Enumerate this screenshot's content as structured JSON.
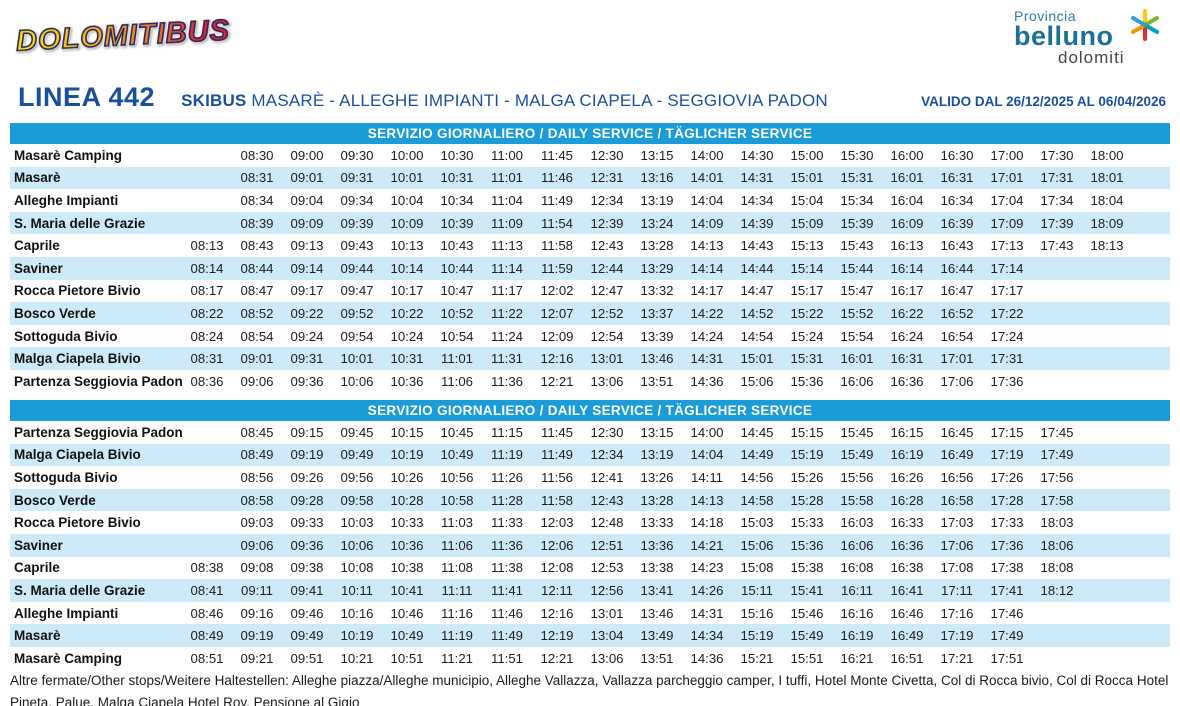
{
  "colors": {
    "title_blue": "#1a4f9e",
    "table_header_bg": "#1a9cd8",
    "row_stripe": "#cdeaf8",
    "provincia_teal": "#1d6f97"
  },
  "header": {
    "dolomitibus_logo_text": "DOLOMITIBUS",
    "provincia_logo": {
      "line1": "Provincia",
      "line2": "belluno",
      "line3": "dolomiti",
      "star_icon": "multicolor-star-icon"
    }
  },
  "title": {
    "line_number": "LINEA 442",
    "service_label": "SKIBUS",
    "route": " MASARÈ - ALLEGHE IMPIANTI - MALGA CIAPELA - SEGGIOVIA PADON",
    "validity": "VALIDO DAL 26/12/2025 AL 06/04/2026"
  },
  "tables": [
    {
      "header": "SERVIZIO GIORNALIERO / DAILY SERVICE / TÄGLICHER SERVICE",
      "rows": [
        {
          "stop": "Masarè Camping",
          "times": [
            "",
            "08:30",
            "09:00",
            "09:30",
            "10:00",
            "10:30",
            "11:00",
            "11:45",
            "12:30",
            "13:15",
            "14:00",
            "14:30",
            "15:00",
            "15:30",
            "16:00",
            "16:30",
            "17:00",
            "17:30",
            "18:00"
          ]
        },
        {
          "stop": "Masarè",
          "times": [
            "",
            "08:31",
            "09:01",
            "09:31",
            "10:01",
            "10:31",
            "11:01",
            "11:46",
            "12:31",
            "13:16",
            "14:01",
            "14:31",
            "15:01",
            "15:31",
            "16:01",
            "16:31",
            "17:01",
            "17:31",
            "18:01"
          ]
        },
        {
          "stop": "Alleghe Impianti",
          "times": [
            "",
            "08:34",
            "09:04",
            "09:34",
            "10:04",
            "10:34",
            "11:04",
            "11:49",
            "12:34",
            "13:19",
            "14:04",
            "14:34",
            "15:04",
            "15:34",
            "16:04",
            "16:34",
            "17:04",
            "17:34",
            "18:04"
          ]
        },
        {
          "stop": "S. Maria delle Grazie",
          "times": [
            "",
            "08:39",
            "09:09",
            "09:39",
            "10:09",
            "10:39",
            "11:09",
            "11:54",
            "12:39",
            "13:24",
            "14:09",
            "14:39",
            "15:09",
            "15:39",
            "16:09",
            "16:39",
            "17:09",
            "17:39",
            "18:09"
          ]
        },
        {
          "stop": "Caprile",
          "times": [
            "08:13",
            "08:43",
            "09:13",
            "09:43",
            "10:13",
            "10:43",
            "11:13",
            "11:58",
            "12:43",
            "13:28",
            "14:13",
            "14:43",
            "15:13",
            "15:43",
            "16:13",
            "16:43",
            "17:13",
            "17:43",
            "18:13"
          ]
        },
        {
          "stop": "Saviner",
          "times": [
            "08:14",
            "08:44",
            "09:14",
            "09:44",
            "10:14",
            "10:44",
            "11:14",
            "11:59",
            "12:44",
            "13:29",
            "14:14",
            "14:44",
            "15:14",
            "15:44",
            "16:14",
            "16:44",
            "17:14",
            "",
            ""
          ]
        },
        {
          "stop": "Rocca Pietore Bivio",
          "times": [
            "08:17",
            "08:47",
            "09:17",
            "09:47",
            "10:17",
            "10:47",
            "11:17",
            "12:02",
            "12:47",
            "13:32",
            "14:17",
            "14:47",
            "15:17",
            "15:47",
            "16:17",
            "16:47",
            "17:17",
            "",
            ""
          ]
        },
        {
          "stop": "Bosco Verde",
          "times": [
            "08:22",
            "08:52",
            "09:22",
            "09:52",
            "10:22",
            "10:52",
            "11:22",
            "12:07",
            "12:52",
            "13:37",
            "14:22",
            "14:52",
            "15:22",
            "15:52",
            "16:22",
            "16:52",
            "17:22",
            "",
            ""
          ]
        },
        {
          "stop": "Sottoguda Bivio",
          "times": [
            "08:24",
            "08:54",
            "09:24",
            "09:54",
            "10:24",
            "10:54",
            "11:24",
            "12:09",
            "12:54",
            "13:39",
            "14:24",
            "14:54",
            "15:24",
            "15:54",
            "16:24",
            "16:54",
            "17:24",
            "",
            ""
          ]
        },
        {
          "stop": "Malga Ciapela Bivio",
          "times": [
            "08:31",
            "09:01",
            "09:31",
            "10:01",
            "10:31",
            "11:01",
            "11:31",
            "12:16",
            "13:01",
            "13:46",
            "14:31",
            "15:01",
            "15:31",
            "16:01",
            "16:31",
            "17:01",
            "17:31",
            "",
            ""
          ]
        },
        {
          "stop": "Partenza Seggiovia Padon",
          "times": [
            "08:36",
            "09:06",
            "09:36",
            "10:06",
            "10:36",
            "11:06",
            "11:36",
            "12:21",
            "13:06",
            "13:51",
            "14:36",
            "15:06",
            "15:36",
            "16:06",
            "16:36",
            "17:06",
            "17:36",
            "",
            ""
          ]
        }
      ]
    },
    {
      "header": "SERVIZIO GIORNALIERO / DAILY SERVICE / TÄGLICHER SERVICE",
      "rows": [
        {
          "stop": "Partenza Seggiovia Padon",
          "times": [
            "",
            "08:45",
            "09:15",
            "09:45",
            "10:15",
            "10:45",
            "11:15",
            "11:45",
            "12:30",
            "13:15",
            "14:00",
            "14:45",
            "15:15",
            "15:45",
            "16:15",
            "16:45",
            "17:15",
            "17:45",
            ""
          ]
        },
        {
          "stop": "Malga Ciapela Bivio",
          "times": [
            "",
            "08:49",
            "09:19",
            "09:49",
            "10:19",
            "10:49",
            "11:19",
            "11:49",
            "12:34",
            "13:19",
            "14:04",
            "14:49",
            "15:19",
            "15:49",
            "16:19",
            "16:49",
            "17:19",
            "17:49",
            ""
          ]
        },
        {
          "stop": "Sottoguda Bivio",
          "times": [
            "",
            "08:56",
            "09:26",
            "09:56",
            "10:26",
            "10:56",
            "11:26",
            "11:56",
            "12:41",
            "13:26",
            "14:11",
            "14:56",
            "15:26",
            "15:56",
            "16:26",
            "16:56",
            "17:26",
            "17:56",
            ""
          ]
        },
        {
          "stop": "Bosco Verde",
          "times": [
            "",
            "08:58",
            "09:28",
            "09:58",
            "10:28",
            "10:58",
            "11:28",
            "11:58",
            "12:43",
            "13:28",
            "14:13",
            "14:58",
            "15:28",
            "15:58",
            "16:28",
            "16:58",
            "17:28",
            "17:58",
            ""
          ]
        },
        {
          "stop": "Rocca Pietore Bivio",
          "times": [
            "",
            "09:03",
            "09:33",
            "10:03",
            "10:33",
            "11:03",
            "11:33",
            "12:03",
            "12:48",
            "13:33",
            "14:18",
            "15:03",
            "15:33",
            "16:03",
            "16:33",
            "17:03",
            "17:33",
            "18:03",
            ""
          ]
        },
        {
          "stop": "Saviner",
          "times": [
            "",
            "09:06",
            "09:36",
            "10:06",
            "10:36",
            "11:06",
            "11:36",
            "12:06",
            "12:51",
            "13:36",
            "14:21",
            "15:06",
            "15:36",
            "16:06",
            "16:36",
            "17:06",
            "17:36",
            "18:06",
            ""
          ]
        },
        {
          "stop": "Caprile",
          "times": [
            "08:38",
            "09:08",
            "09:38",
            "10:08",
            "10:38",
            "11:08",
            "11:38",
            "12:08",
            "12:53",
            "13:38",
            "14:23",
            "15:08",
            "15:38",
            "16:08",
            "16:38",
            "17:08",
            "17:38",
            "18:08",
            ""
          ]
        },
        {
          "stop": "S. Maria delle Grazie",
          "times": [
            "08:41",
            "09:11",
            "09:41",
            "10:11",
            "10:41",
            "11:11",
            "11:41",
            "12:11",
            "12:56",
            "13:41",
            "14:26",
            "15:11",
            "15:41",
            "16:11",
            "16:41",
            "17:11",
            "17:41",
            "18:12",
            ""
          ]
        },
        {
          "stop": "Alleghe Impianti",
          "times": [
            "08:46",
            "09:16",
            "09:46",
            "10:16",
            "10:46",
            "11:16",
            "11:46",
            "12:16",
            "13:01",
            "13:46",
            "14:31",
            "15:16",
            "15:46",
            "16:16",
            "16:46",
            "17:16",
            "17:46",
            "",
            ""
          ]
        },
        {
          "stop": "Masarè",
          "times": [
            "08:49",
            "09:19",
            "09:49",
            "10:19",
            "10:49",
            "11:19",
            "11:49",
            "12:19",
            "13:04",
            "13:49",
            "14:34",
            "15:19",
            "15:49",
            "16:19",
            "16:49",
            "17:19",
            "17:49",
            "",
            ""
          ]
        },
        {
          "stop": "Masarè Camping",
          "times": [
            "08:51",
            "09:21",
            "09:51",
            "10:21",
            "10:51",
            "11:21",
            "11:51",
            "12:21",
            "13:06",
            "13:51",
            "14:36",
            "15:21",
            "15:51",
            "16:21",
            "16:51",
            "17:21",
            "17:51",
            "",
            ""
          ]
        }
      ]
    }
  ],
  "footer": {
    "note": "Altre fermate/Other stops/Weitere Haltestellen: Alleghe piazza/Alleghe municipio, Alleghe Vallazza, Vallazza parcheggio camper, I tuffi, Hotel Monte Civetta, Col di Rocca bivio, Col di Rocca Hotel Pineta, Palue, Malga Ciapela Hotel Roy, Pensione al Gigio"
  }
}
